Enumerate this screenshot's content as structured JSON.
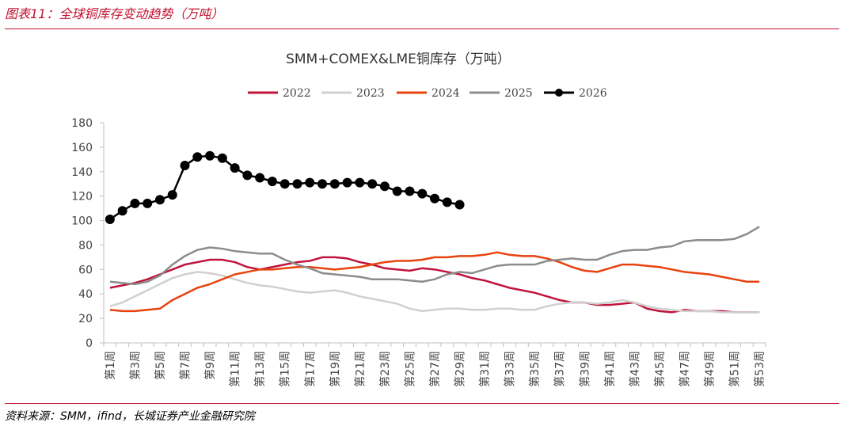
{
  "header": {
    "figure_title": "图表11：全球铜库存变动趋势（万吨）",
    "source": "资料来源：SMM，ifind，长城证券产业金融研究院"
  },
  "colors": {
    "accent": "#c0102e",
    "s2022": "#c0143c",
    "s2023": "#d0d0d0",
    "s2024": "#e8420e",
    "s2025": "#8c8c8c",
    "s2026": "#000000"
  },
  "chart_data": {
    "type": "line",
    "title": "SMM+COMEX&LME铜库存（万吨）",
    "ylim": [
      0,
      180
    ],
    "yticks": [
      0,
      20,
      40,
      60,
      80,
      100,
      120,
      140,
      160,
      180
    ],
    "x_tick_labels": [
      "第1周",
      "第3周",
      "第5周",
      "第7周",
      "第9周",
      "第11周",
      "第13周",
      "第15周",
      "第17周",
      "第19周",
      "第21周",
      "第23周",
      "第25周",
      "第27周",
      "第29周",
      "第31周",
      "第33周",
      "第35周",
      "第37周",
      "第39周",
      "第41周",
      "第43周",
      "第45周",
      "第47周",
      "第49周",
      "第51周",
      "第53周"
    ],
    "legend_position": "top",
    "grid": false,
    "series": [
      {
        "name": "2022",
        "start_week": 1,
        "values": [
          45,
          47,
          49,
          52,
          56,
          60,
          64,
          66,
          68,
          68,
          66,
          62,
          60,
          62,
          64,
          66,
          67,
          70,
          70,
          69,
          66,
          64,
          61,
          60,
          59,
          61,
          60,
          58,
          56,
          53,
          51,
          48,
          45,
          43,
          41,
          38,
          35,
          33,
          33,
          31,
          31,
          32,
          33,
          28,
          26,
          25,
          27,
          26,
          26,
          26,
          25,
          25,
          25
        ]
      },
      {
        "name": "2023",
        "start_week": 1,
        "values": [
          30,
          33,
          38,
          43,
          48,
          53,
          56,
          58,
          57,
          55,
          52,
          49,
          47,
          46,
          44,
          42,
          41,
          42,
          43,
          41,
          38,
          36,
          34,
          32,
          28,
          26,
          27,
          28,
          28,
          27,
          27,
          28,
          28,
          27,
          27,
          30,
          32,
          33,
          33,
          32,
          33,
          35,
          33,
          30,
          28,
          27,
          26,
          26,
          26,
          25,
          25,
          25,
          25
        ]
      },
      {
        "name": "2024",
        "start_week": 1,
        "values": [
          27,
          26,
          26,
          27,
          28,
          35,
          40,
          45,
          48,
          52,
          56,
          58,
          60,
          60,
          61,
          62,
          62,
          61,
          60,
          61,
          62,
          64,
          66,
          67,
          67,
          68,
          70,
          70,
          71,
          71,
          72,
          74,
          72,
          71,
          71,
          69,
          66,
          62,
          59,
          58,
          61,
          64,
          64,
          63,
          62,
          60,
          58,
          57,
          56,
          54,
          52,
          50,
          50
        ]
      },
      {
        "name": "2025",
        "start_week": 1,
        "values": [
          50,
          49,
          48,
          50,
          55,
          64,
          71,
          76,
          78,
          77,
          75,
          74,
          73,
          73,
          68,
          64,
          61,
          57,
          56,
          55,
          54,
          52,
          52,
          52,
          51,
          50,
          52,
          56,
          58,
          57,
          60,
          63,
          64,
          64,
          64,
          67,
          68,
          69,
          68,
          68,
          72,
          75,
          76,
          76,
          78,
          79,
          83,
          84,
          84,
          84,
          85,
          89,
          95
        ]
      },
      {
        "name": "2026",
        "start_week": 1,
        "markers": true,
        "values": [
          101,
          108,
          114,
          114,
          117,
          121,
          145,
          152,
          153,
          151,
          143,
          137,
          135,
          132,
          130,
          130,
          131,
          130,
          130,
          131,
          131,
          130,
          128,
          124,
          124,
          122,
          118,
          115,
          113
        ]
      }
    ]
  }
}
